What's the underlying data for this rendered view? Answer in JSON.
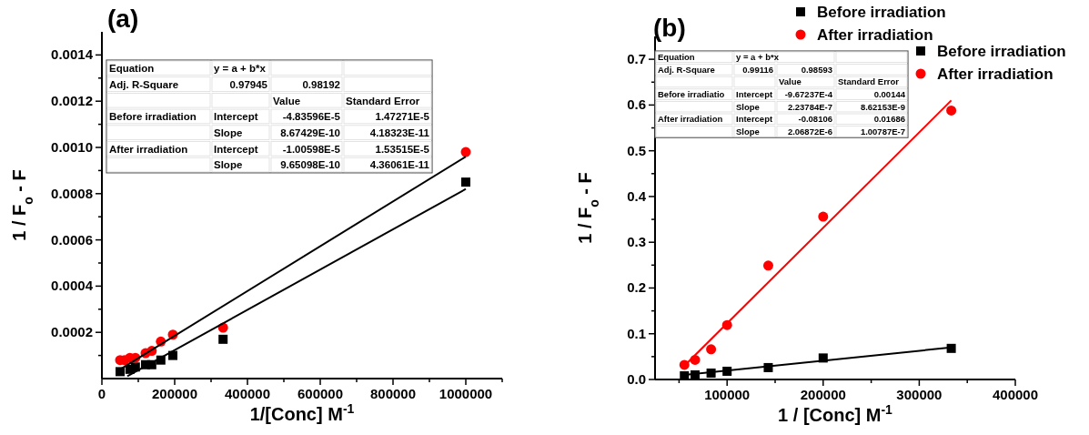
{
  "chart_data": [
    {
      "type": "scatter",
      "title": "(a)",
      "xlabel": "1/[Conc] M$^{-1}$",
      "ylabel": "1 / F$_{o}$ - F",
      "xlim": [
        0,
        1100000
      ],
      "xticks": [
        0,
        {
          "value": 100000,
          "label": null
        },
        200000,
        {
          "value": 300000,
          "label": null
        },
        400000,
        {
          "value": 500000,
          "label": null
        },
        600000,
        {
          "value": 700000,
          "label": null
        },
        800000,
        {
          "value": 900000,
          "label": null
        },
        1000000,
        {
          "value": 1100000,
          "label": null
        }
      ],
      "ylim": [
        0,
        0.0015
      ],
      "yticks": [
        {
          "value": 0.0001,
          "label": null
        },
        0.0002,
        {
          "value": 0.0003,
          "label": null
        },
        0.0004,
        {
          "value": 0.0005,
          "label": null
        },
        0.0006,
        {
          "value": 0.0007,
          "label": null
        },
        0.0008,
        {
          "value": 0.0009,
          "label": null
        },
        {
          "value": 0.001,
          "label": "0.0010"
        },
        {
          "value": 0.0011,
          "label": null
        },
        0.0012,
        {
          "value": 0.0013,
          "label": null
        },
        0.0014
      ],
      "legend": "top right",
      "grid": false,
      "series": [
        {
          "name": "Before irradiation",
          "color": "#000000",
          "marker": "square",
          "x": [
            50000,
            62000,
            77000,
            92000,
            120000,
            137000,
            162000,
            195000,
            333000,
            1000000
          ],
          "values": [
            3e-05,
            null,
            4e-05,
            5e-05,
            6e-05,
            6e-05,
            8e-05,
            0.0001,
            0.00017,
            0.00085
          ]
        },
        {
          "name": "After irradiation",
          "color": "#ff0000",
          "marker": "circle",
          "x": [
            50000,
            62000,
            77000,
            92000,
            120000,
            137000,
            162000,
            195000,
            333000,
            1000000
          ],
          "values": [
            8e-05,
            8e-05,
            9e-05,
            9e-05,
            0.00011,
            0.00012,
            0.00016,
            0.00019,
            0.00022,
            0.00098
          ]
        },
        {
          "type": "line",
          "color": "#000000",
          "marker": "none",
          "x": [
            70000,
            1000000
          ],
          "values": [
            1e-05,
            0.00082
          ]
        },
        {
          "type": "line",
          "color": "#000000",
          "marker": "none",
          "x": [
            50000,
            1000000
          ],
          "values": [
            4e-05,
            0.00096
          ]
        }
      ],
      "annotations": [
        "Equation",
        "y = a + b*x",
        "Adj. R-Square",
        "0.97945",
        "0.98192",
        "Value",
        "Standard Error",
        "Before irradiation",
        "Intercept",
        "-4.83596E-5",
        "1.47271E-5",
        "Slope",
        "8.67429E-10",
        "4.18323E-11",
        "After irradiation",
        "Intercept",
        "-1.00598E-5",
        "1.53515E-5",
        "Slope",
        "9.65098E-10",
        "4.36061E-11"
      ]
    },
    {
      "type": "scatter",
      "title": "(b)",
      "xlabel": "1 / [Conc] M$^{-1}$",
      "ylabel": "1 / F$_{o}$ - F",
      "xlim": [
        25000,
        400000
      ],
      "xticks": [
        {
          "value": 50000,
          "label": null
        },
        100000,
        {
          "value": 150000,
          "label": null
        },
        200000,
        {
          "value": 250000,
          "label": null
        },
        300000,
        {
          "value": 350000,
          "label": null
        },
        400000
      ],
      "ylim": [
        0,
        0.75
      ],
      "yticks": [
        {
          "value": 0,
          "label": "0.0"
        },
        {
          "value": 0.05,
          "label": null
        },
        0.1,
        {
          "value": 0.15,
          "label": null
        },
        0.2,
        {
          "value": 0.25,
          "label": null
        },
        0.3,
        {
          "value": 0.35,
          "label": null
        },
        0.4,
        {
          "value": 0.45,
          "label": null
        },
        0.5,
        {
          "value": 0.55,
          "label": null
        },
        0.6,
        {
          "value": 0.65,
          "label": null
        },
        0.7
      ],
      "legend": "top right",
      "grid": false,
      "series": [
        {
          "name": "Before irradiation",
          "color": "#000000",
          "marker": "square",
          "x": [
            55556,
            66667,
            83333,
            100000,
            142857,
            200000,
            333333
          ],
          "values": [
            0.008,
            0.01,
            0.014,
            0.018,
            0.026,
            0.047,
            0.068
          ]
        },
        {
          "name": "After irradiation",
          "color": "#ff0000",
          "marker": "circle",
          "x": [
            55556,
            66667,
            83333,
            100000,
            142857,
            200000,
            333333
          ],
          "values": [
            0.032,
            0.043,
            0.066,
            0.119,
            0.249,
            0.356,
            0.588
          ]
        },
        {
          "type": "line",
          "color": "#000000",
          "marker": "none",
          "x": [
            55556,
            333333
          ],
          "values": [
            0.01,
            0.07
          ]
        },
        {
          "type": "line",
          "color": "#ff0000",
          "marker": "none",
          "x": [
            55556,
            333333
          ],
          "values": [
            0.03,
            0.61
          ]
        }
      ],
      "annotations": [
        "Equation",
        "y = a + b*x",
        "Adj. R-Square",
        "0.99116",
        "0.98593",
        "Value",
        "Standard Error",
        "Before irradiatio",
        "Intercept",
        "-9.67237E-4",
        "0.00144",
        "Slope",
        "2.23784E-7",
        "8.62153E-9",
        "After irradiation",
        "Intercept",
        "-0.08106",
        "0.01686",
        "Slope",
        "2.06872E-6",
        "1.00787E-7"
      ]
    }
  ]
}
